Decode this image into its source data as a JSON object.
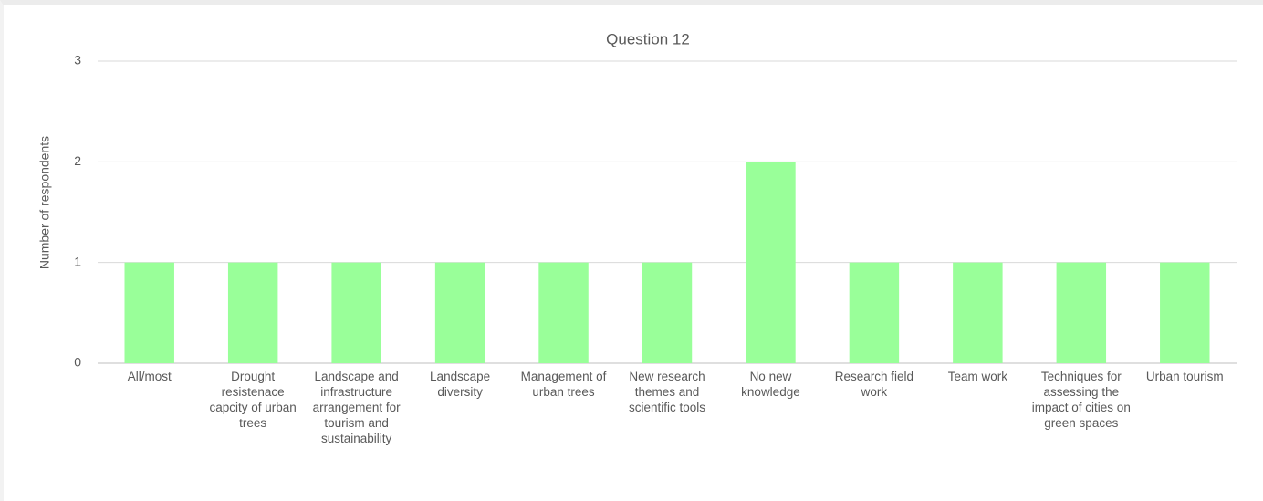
{
  "chart_data": {
    "type": "bar",
    "title": "Question 12",
    "y_label": "Number of respondents",
    "categories": [
      "All/most",
      "Drought resistenace capcity of urban trees",
      "Landscape and infrastructure arrangement for tourism and sustainability",
      "Landscape diversity",
      "Management of urban trees",
      "New research themes and scientific tools",
      "No new knowledge",
      "Research field work",
      "Team work",
      "Techniques for assessing the impact of cities on green spaces",
      "Urban tourism"
    ],
    "values": [
      1,
      1,
      1,
      1,
      1,
      1,
      2,
      1,
      1,
      1,
      1
    ],
    "color": "#99ff99",
    "ylim": [
      0,
      3
    ],
    "yticks": [
      0,
      1,
      2,
      3
    ],
    "grid": true
  }
}
